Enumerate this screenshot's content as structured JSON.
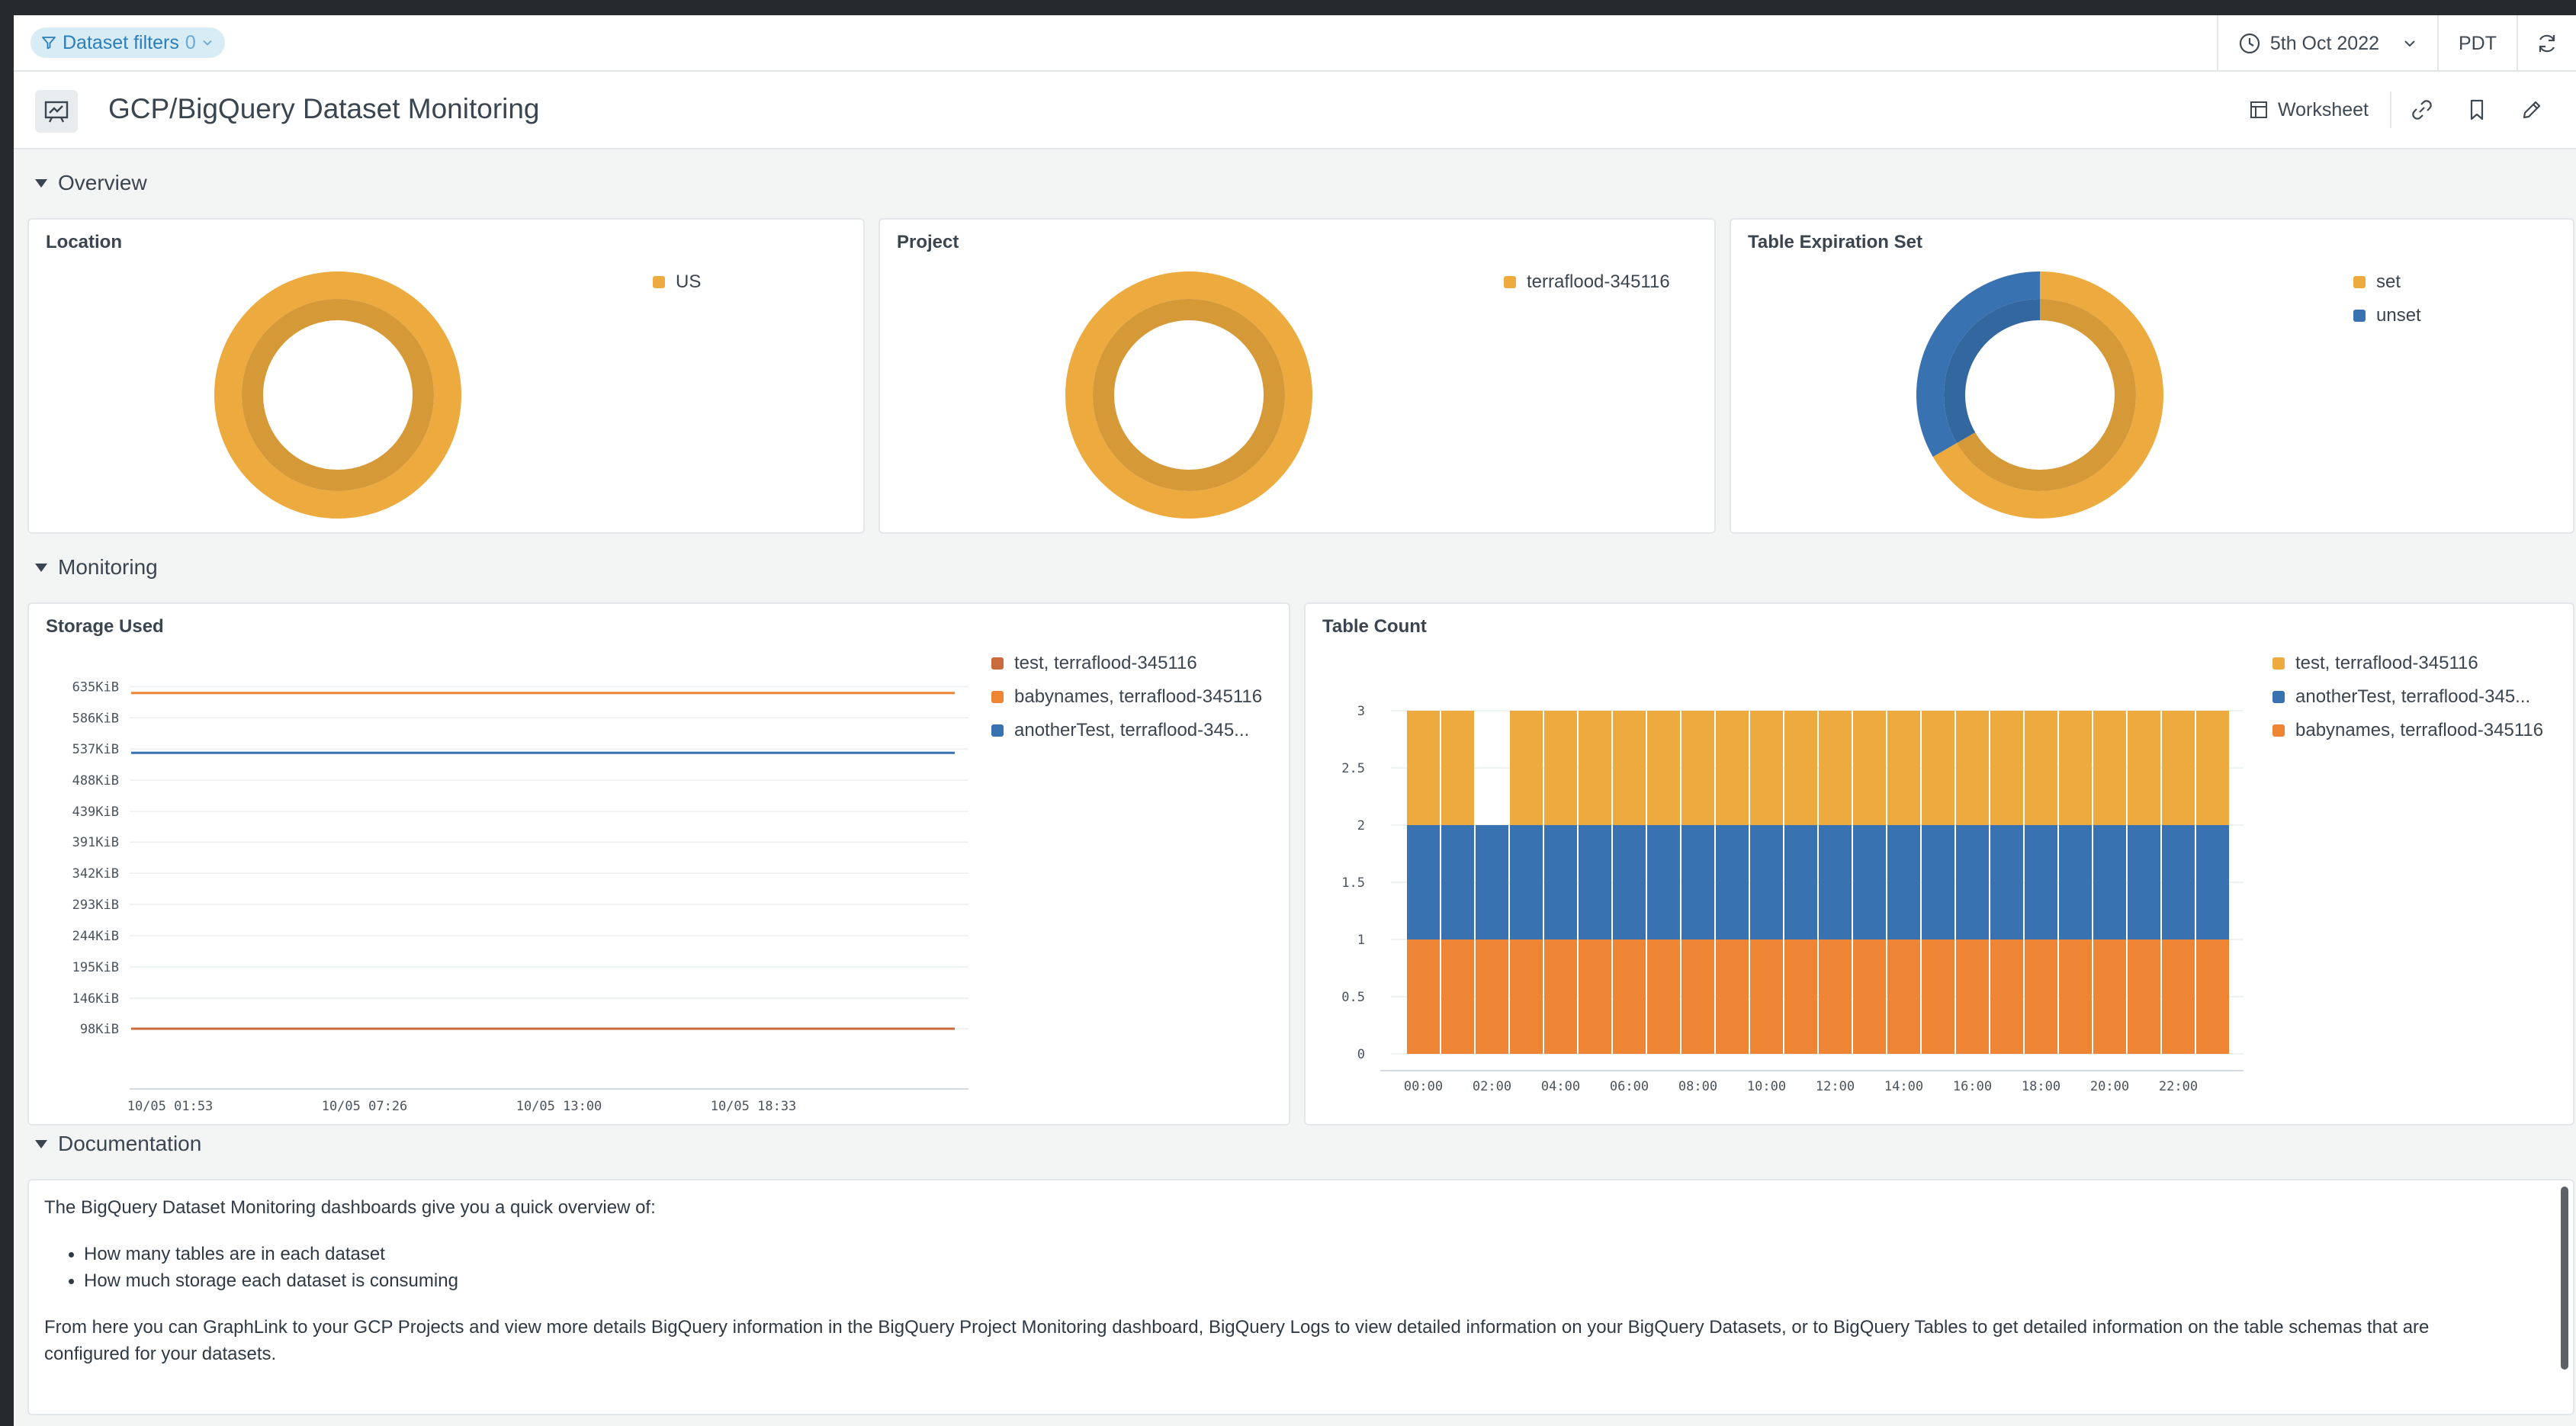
{
  "filterbar": {
    "filter_label": "Dataset filters",
    "filter_count": "0",
    "date_label": "5th Oct 2022",
    "timezone": "PDT"
  },
  "header": {
    "title": "GCP/BigQuery Dataset Monitoring",
    "worksheet_label": "Worksheet"
  },
  "sections": {
    "overview": "Overview",
    "monitoring": "Monitoring",
    "documentation": "Documentation"
  },
  "colors": {
    "orange_gold": "#edaa3e",
    "orange_gold_inner": "#d79c36",
    "blue": "#3872b1",
    "blue_inner": "#3465a0",
    "orange": "#ee8534",
    "rust": "#c96a3f"
  },
  "chart_data": [
    {
      "type": "pie",
      "title": "Location",
      "labels": [
        "US"
      ],
      "values": [
        1
      ],
      "colors": [
        "#edaa3e"
      ],
      "legend": "top-right"
    },
    {
      "type": "pie",
      "title": "Project",
      "labels": [
        "terraflood-345116"
      ],
      "values": [
        1
      ],
      "colors": [
        "#edaa3e"
      ],
      "legend": "top-right"
    },
    {
      "type": "pie",
      "title": "Table Expiration Set",
      "labels": [
        "set",
        "unset"
      ],
      "values": [
        2,
        1
      ],
      "colors": [
        "#edaa3e",
        "#3872b1"
      ],
      "legend": "top-right"
    },
    {
      "type": "line",
      "title": "Storage Used",
      "y_ticks": [
        "635KiB",
        "586KiB",
        "537KiB",
        "488KiB",
        "439KiB",
        "391KiB",
        "342KiB",
        "293KiB",
        "244KiB",
        "195KiB",
        "146KiB",
        "98KiB"
      ],
      "y_tick_values": [
        635,
        586,
        537,
        488,
        439,
        391,
        342,
        293,
        244,
        195,
        146,
        98
      ],
      "x_ticks": [
        "10/05 01:53",
        "10/05 07:26",
        "10/05 13:00",
        "10/05 18:33"
      ],
      "ylim": [
        49,
        645
      ],
      "grid": true,
      "legend": "right",
      "series": [
        {
          "name": "test, terraflood-345116",
          "color": "#c96a3f",
          "values": [
            98,
            98
          ]
        },
        {
          "name": "babynames, terraflood-345116",
          "color": "#ee8534",
          "values": [
            625,
            625
          ]
        },
        {
          "name": "anotherTest, terraflood-345...",
          "color": "#3872b1",
          "values": [
            531,
            531
          ]
        }
      ]
    },
    {
      "type": "bar",
      "title": "Table Count",
      "stacked": true,
      "x_ticks": [
        "00:00",
        "02:00",
        "04:00",
        "06:00",
        "08:00",
        "10:00",
        "12:00",
        "14:00",
        "16:00",
        "18:00",
        "20:00",
        "22:00"
      ],
      "y_ticks": [
        "0",
        "0.5",
        "1",
        "1.5",
        "2",
        "2.5",
        "3"
      ],
      "ylim": [
        0,
        3
      ],
      "grid": true,
      "legend": "right",
      "bar_count": 24,
      "series": [
        {
          "name": "babynames, terraflood-345116",
          "color": "#ee8534",
          "values": [
            1,
            1,
            1,
            1,
            1,
            1,
            1,
            1,
            1,
            1,
            1,
            1,
            1,
            1,
            1,
            1,
            1,
            1,
            1,
            1,
            1,
            1,
            1,
            1
          ]
        },
        {
          "name": "anotherTest, terraflood-345...",
          "color": "#3872b1",
          "values": [
            1,
            1,
            1,
            1,
            1,
            1,
            1,
            1,
            1,
            1,
            1,
            1,
            1,
            1,
            1,
            1,
            1,
            1,
            1,
            1,
            1,
            1,
            1,
            1
          ]
        },
        {
          "name": "test, terraflood-345116",
          "color": "#edaa3e",
          "values": [
            1,
            1,
            0,
            1,
            1,
            1,
            1,
            1,
            1,
            1,
            1,
            1,
            1,
            1,
            1,
            1,
            1,
            1,
            1,
            1,
            1,
            1,
            1,
            1
          ]
        }
      ],
      "legend_order": [
        "test, terraflood-345116",
        "anotherTest, terraflood-345...",
        "babynames, terraflood-345116"
      ]
    }
  ],
  "documentation": {
    "intro": "The BigQuery Dataset Monitoring dashboards give you a quick overview of:",
    "bullets": [
      "How many tables are in each dataset",
      "How much storage each dataset is consuming"
    ],
    "body": "From here you can GraphLink to your GCP Projects and view more details BigQuery information in the BigQuery Project Monitoring dashboard, BigQuery Logs to view detailed information on your BigQuery Datasets, or to BigQuery Tables to get detailed information on the table schemas that are configured for your datasets."
  }
}
